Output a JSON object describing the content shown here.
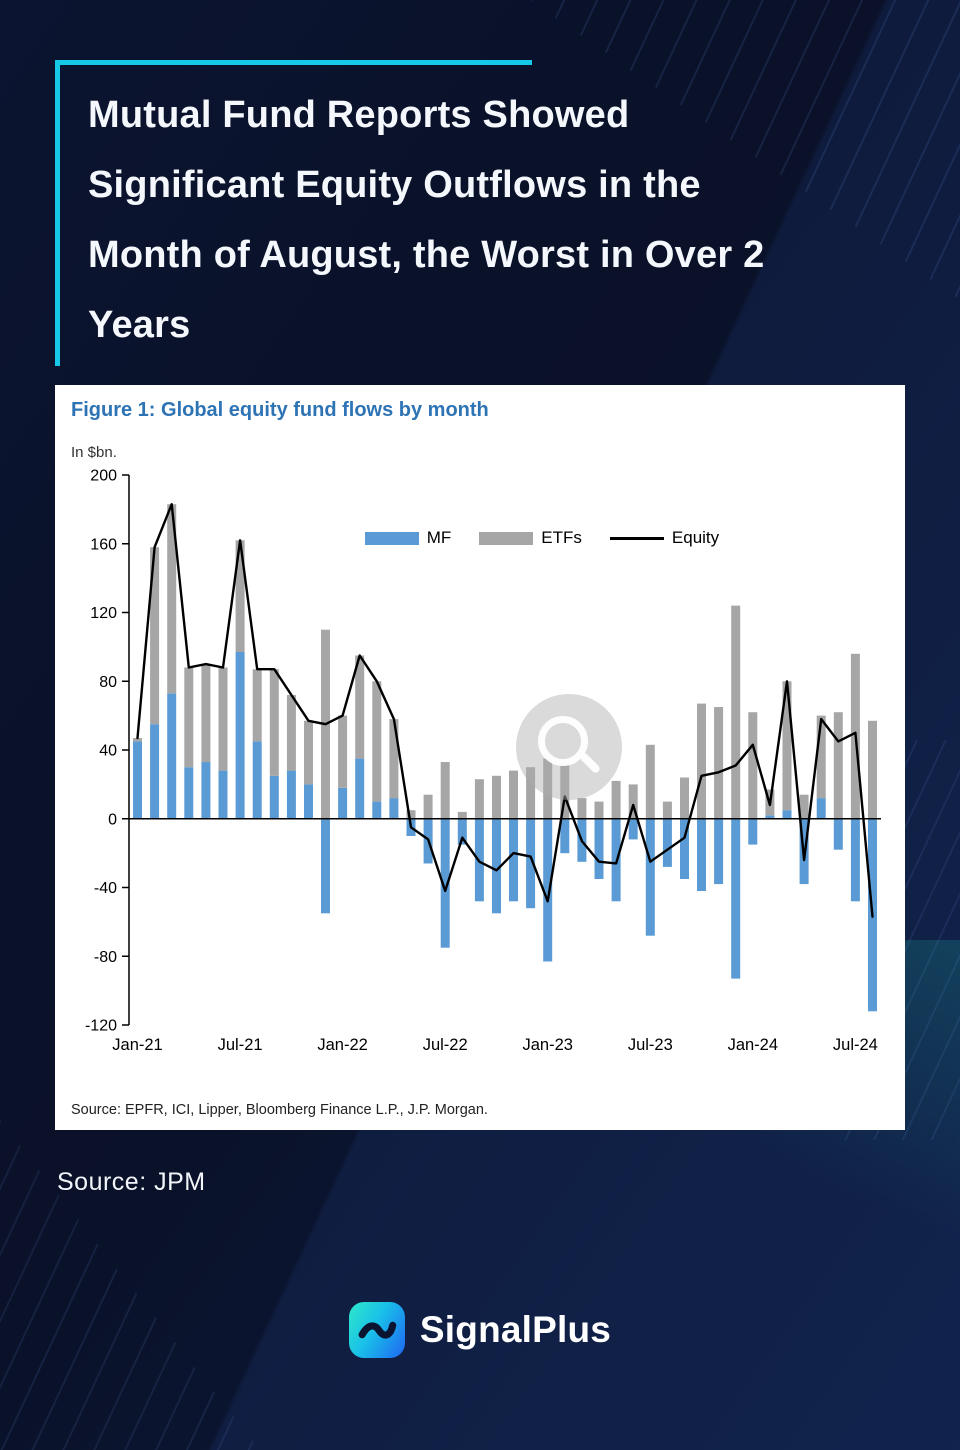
{
  "page": {
    "title_lines": [
      "Mutual Fund Reports Showed",
      "Significant Equity Outflows in the",
      "Month of August, the Worst in Over 2",
      "Years"
    ],
    "source_note": "Source: JPM",
    "brand": "SignalPlus"
  },
  "figure": {
    "title": "Figure 1: Global equity fund flows by month",
    "unit_label": "In $bn.",
    "source": "Source: EPFR, ICI, Lipper, Bloomberg Finance L.P., J.P. Morgan."
  },
  "colors": {
    "accent_cyan": "#17c9e8",
    "mf_blue": "#5b9bd5",
    "etf_gray": "#a6a6a6",
    "equity_black": "#000000",
    "figure_title_blue": "#2e74b5"
  },
  "chart_data": {
    "type": "bar",
    "subtype": "stacked-bars-with-line",
    "title": "Figure 1: Global equity fund flows by month",
    "ylabel": "In $bn.",
    "ylim": [
      -120,
      200
    ],
    "ytick_step": 40,
    "grid": false,
    "legend_position": "inside-top-center",
    "categories": [
      "Jan-21",
      "Feb-21",
      "Mar-21",
      "Apr-21",
      "May-21",
      "Jun-21",
      "Jul-21",
      "Aug-21",
      "Sep-21",
      "Oct-21",
      "Nov-21",
      "Dec-21",
      "Jan-22",
      "Feb-22",
      "Mar-22",
      "Apr-22",
      "May-22",
      "Jun-22",
      "Jul-22",
      "Aug-22",
      "Sep-22",
      "Oct-22",
      "Nov-22",
      "Dec-22",
      "Jan-23",
      "Feb-23",
      "Mar-23",
      "Apr-23",
      "May-23",
      "Jun-23",
      "Jul-23",
      "Aug-23",
      "Sep-23",
      "Oct-23",
      "Nov-23",
      "Dec-23",
      "Jan-24",
      "Feb-24",
      "Mar-24",
      "Apr-24",
      "May-24",
      "Jun-24",
      "Jul-24",
      "Aug-24"
    ],
    "xticks": [
      {
        "index": 0,
        "label": "Jan-21"
      },
      {
        "index": 6,
        "label": "Jul-21"
      },
      {
        "index": 12,
        "label": "Jan-22"
      },
      {
        "index": 18,
        "label": "Jul-22"
      },
      {
        "index": 24,
        "label": "Jan-23"
      },
      {
        "index": 30,
        "label": "Jul-23"
      },
      {
        "index": 36,
        "label": "Jan-24"
      },
      {
        "index": 42,
        "label": "Jul-24"
      }
    ],
    "series": [
      {
        "name": "MF",
        "type": "bar",
        "color": "#5b9bd5",
        "values": [
          45,
          55,
          73,
          30,
          33,
          28,
          97,
          45,
          25,
          28,
          20,
          -55,
          18,
          35,
          10,
          12,
          -10,
          -26,
          -75,
          -15,
          -48,
          -55,
          -48,
          -52,
          -83,
          -20,
          -25,
          -35,
          -48,
          -12,
          -68,
          -28,
          -35,
          -42,
          -38,
          -93,
          -15,
          2,
          5,
          -38,
          12,
          -18,
          -48,
          -112
        ]
      },
      {
        "name": "ETFs",
        "type": "bar",
        "color": "#a6a6a6",
        "values": [
          2,
          103,
          110,
          58,
          57,
          60,
          65,
          42,
          62,
          44,
          37,
          110,
          42,
          60,
          70,
          46,
          5,
          14,
          33,
          4,
          23,
          25,
          28,
          30,
          35,
          33,
          12,
          10,
          22,
          20,
          43,
          10,
          24,
          67,
          65,
          124,
          62,
          15,
          75,
          14,
          48,
          62,
          96,
          57
        ]
      },
      {
        "name": "Equity",
        "type": "line",
        "color": "#000000",
        "values": [
          47,
          158,
          183,
          88,
          90,
          88,
          162,
          87,
          87,
          72,
          57,
          55,
          60,
          95,
          80,
          58,
          -5,
          -12,
          -42,
          -11,
          -25,
          -30,
          -20,
          -22,
          -48,
          13,
          -13,
          -25,
          -26,
          8,
          -25,
          -18,
          -11,
          25,
          27,
          31,
          43,
          8,
          80,
          -24,
          58,
          45,
          50,
          -57
        ]
      }
    ]
  }
}
